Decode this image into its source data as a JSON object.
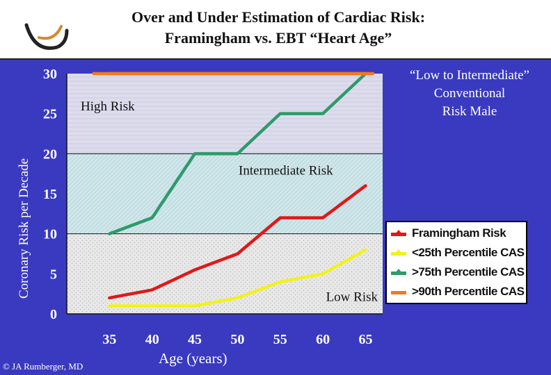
{
  "header": {
    "title_line1": "Over and Under Estimation of Cardiac Risk:",
    "title_line2": "Framingham vs. EBT “Heart Age”"
  },
  "corner_note": {
    "line1": "“Low to Intermediate”",
    "line2": "Conventional",
    "line3": "Risk Male"
  },
  "credit": "© JA Rumberger, MD",
  "colors": {
    "background": "#3a3ac0",
    "high_zone": "#dcdcec",
    "intermediate_zone": "#cfe6ea",
    "low_zone": "#e8e8e8"
  },
  "chart_data": {
    "type": "line",
    "xlabel": "Age (years)",
    "ylabel": "Coronary Risk per Decade",
    "x": [
      35,
      40,
      45,
      50,
      55,
      60,
      65
    ],
    "xlim": [
      30,
      67
    ],
    "ylim": [
      0,
      30
    ],
    "x_ticks": [
      "35",
      "40",
      "45",
      "50",
      "55",
      "60",
      "65"
    ],
    "y_ticks": [
      "0",
      "5",
      "10",
      "15",
      "20",
      "25",
      "30"
    ],
    "zones": [
      {
        "label": "High Risk",
        "from": 20,
        "to": 30
      },
      {
        "label": "Intermediate Risk",
        "from": 10,
        "to": 20
      },
      {
        "label": "Low Risk",
        "from": 0,
        "to": 10
      }
    ],
    "series": [
      {
        "name": "Framingham Risk",
        "color": "#e01818",
        "values": [
          2,
          3,
          5.5,
          7.5,
          12,
          12,
          16
        ]
      },
      {
        "name": "<25th Percentile CAS",
        "color": "#f2f21a",
        "values": [
          1,
          1,
          1,
          2,
          4,
          5,
          8
        ]
      },
      {
        "name": ">75th Percentile CAS",
        "color": "#2e9a6a",
        "values": [
          10,
          12,
          20,
          20,
          25,
          25,
          30
        ]
      },
      {
        "name": ">90th Percentile CAS",
        "color": "#f07a1e",
        "values": [
          30,
          30,
          30,
          30,
          30,
          30,
          30
        ]
      }
    ],
    "legend_position": "bottom-right"
  }
}
